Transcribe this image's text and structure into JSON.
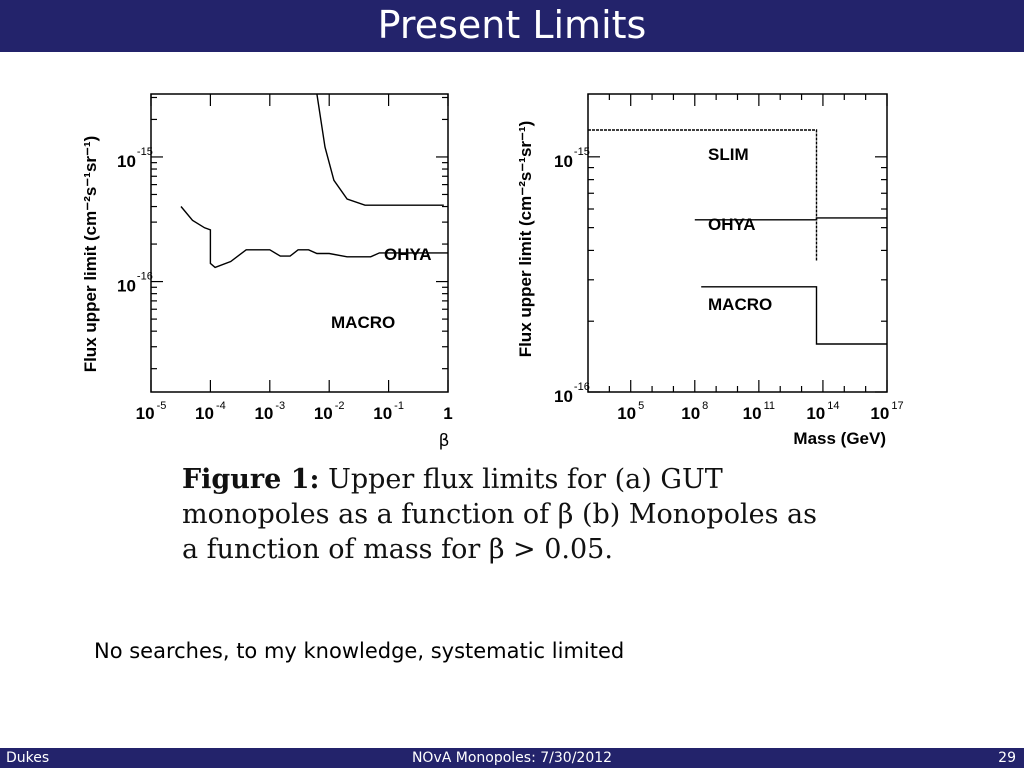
{
  "slide": {
    "title": "Present Limits",
    "footer": {
      "author": "Dukes",
      "center": "NOvA Monopoles:  7/30/2012",
      "page": "29"
    },
    "note": "No searches, to my knowledge, systematic limited"
  },
  "caption": {
    "label": "Figure 1:",
    "text": "Upper flux limits for (a) GUT monopoles as a function of β (b) Monopoles as a function of mass for β > 0.05."
  },
  "chart_data": [
    {
      "type": "line",
      "ylabel": "Flux upper limit (cm⁻²s⁻¹sr⁻¹)",
      "xlabel": "β",
      "x_scale": "log",
      "y_scale": "log",
      "xlim": [
        1e-05,
        1
      ],
      "ylim": [
        1.3e-17,
        3.2e-15
      ],
      "x_ticks": [
        {
          "base": "10",
          "exp": "-5"
        },
        {
          "base": "10",
          "exp": "-4"
        },
        {
          "base": "10",
          "exp": "-3"
        },
        {
          "base": "10",
          "exp": "-2"
        },
        {
          "base": "10",
          "exp": "-1"
        },
        {
          "base": "1",
          "exp": ""
        }
      ],
      "y_ticks": [
        {
          "base": "10",
          "exp": "-15"
        },
        {
          "base": "10",
          "exp": "-16"
        }
      ],
      "series": [
        {
          "name": "OHYA",
          "points": [
            [
              0.0062,
              3.2e-15
            ],
            [
              0.0085,
              1.2e-15
            ],
            [
              0.012,
              6.5e-16
            ],
            [
              0.02,
              4.6e-16
            ],
            [
              0.04,
              4.1e-16
            ],
            [
              0.85,
              4.1e-16
            ]
          ]
        },
        {
          "name": "MACRO",
          "points": [
            [
              3.2e-05,
              4e-16
            ],
            [
              5e-05,
              3.1e-16
            ],
            [
              8e-05,
              2.7e-16
            ],
            [
              0.0001,
              2.6e-16
            ],
            [
              0.0001,
              1.4e-16
            ],
            [
              0.00012,
              1.3e-16
            ],
            [
              0.00022,
              1.45e-16
            ],
            [
              0.0004,
              1.8e-16
            ],
            [
              0.001,
              1.8e-16
            ],
            [
              0.0015,
              1.6e-16
            ],
            [
              0.0022,
              1.6e-16
            ],
            [
              0.003,
              1.8e-16
            ],
            [
              0.0045,
              1.8e-16
            ],
            [
              0.0062,
              1.68e-16
            ],
            [
              0.01,
              1.68e-16
            ],
            [
              0.02,
              1.58e-16
            ],
            [
              0.05,
              1.58e-16
            ],
            [
              0.07,
              1.7e-16
            ],
            [
              1.0,
              1.7e-16
            ]
          ]
        }
      ]
    },
    {
      "type": "line",
      "ylabel": "Flux upper limit (cm⁻²s⁻¹sr⁻¹)",
      "xlabel": "Mass (GeV)",
      "x_scale": "log",
      "y_scale": "log",
      "xlim": [
        1000,
        1e+17
      ],
      "ylim": [
        1e-16,
        1.85e-15
      ],
      "x_ticks": [
        {
          "base": "10",
          "exp": "5"
        },
        {
          "base": "10",
          "exp": "8"
        },
        {
          "base": "10",
          "exp": "11"
        },
        {
          "base": "10",
          "exp": "14"
        },
        {
          "base": "10",
          "exp": "17"
        }
      ],
      "y_ticks": [
        {
          "base": "10",
          "exp": "-15"
        },
        {
          "base": "10",
          "exp": "-16"
        }
      ],
      "series": [
        {
          "name": "SLIM",
          "points": [
            [
              1000,
              1.3e-15
            ],
            [
              50000000000000.0,
              1.3e-15
            ],
            [
              50000000000000.0,
              3.6e-16
            ]
          ]
        },
        {
          "name": "OHYA",
          "points": [
            [
              100000000.0,
              5.4e-16
            ],
            [
              50000000000000.0,
              5.4e-16
            ],
            [
              50000000000000.0,
              5.5e-16
            ],
            [
              1e+17,
              5.5e-16
            ]
          ]
        },
        {
          "name": "MACRO",
          "points": [
            [
              200000000.0,
              2.8e-16
            ],
            [
              50000000000000.0,
              2.8e-16
            ],
            [
              50000000000000.0,
              1.6e-16
            ],
            [
              1e+17,
              1.6e-16
            ]
          ]
        }
      ]
    }
  ]
}
